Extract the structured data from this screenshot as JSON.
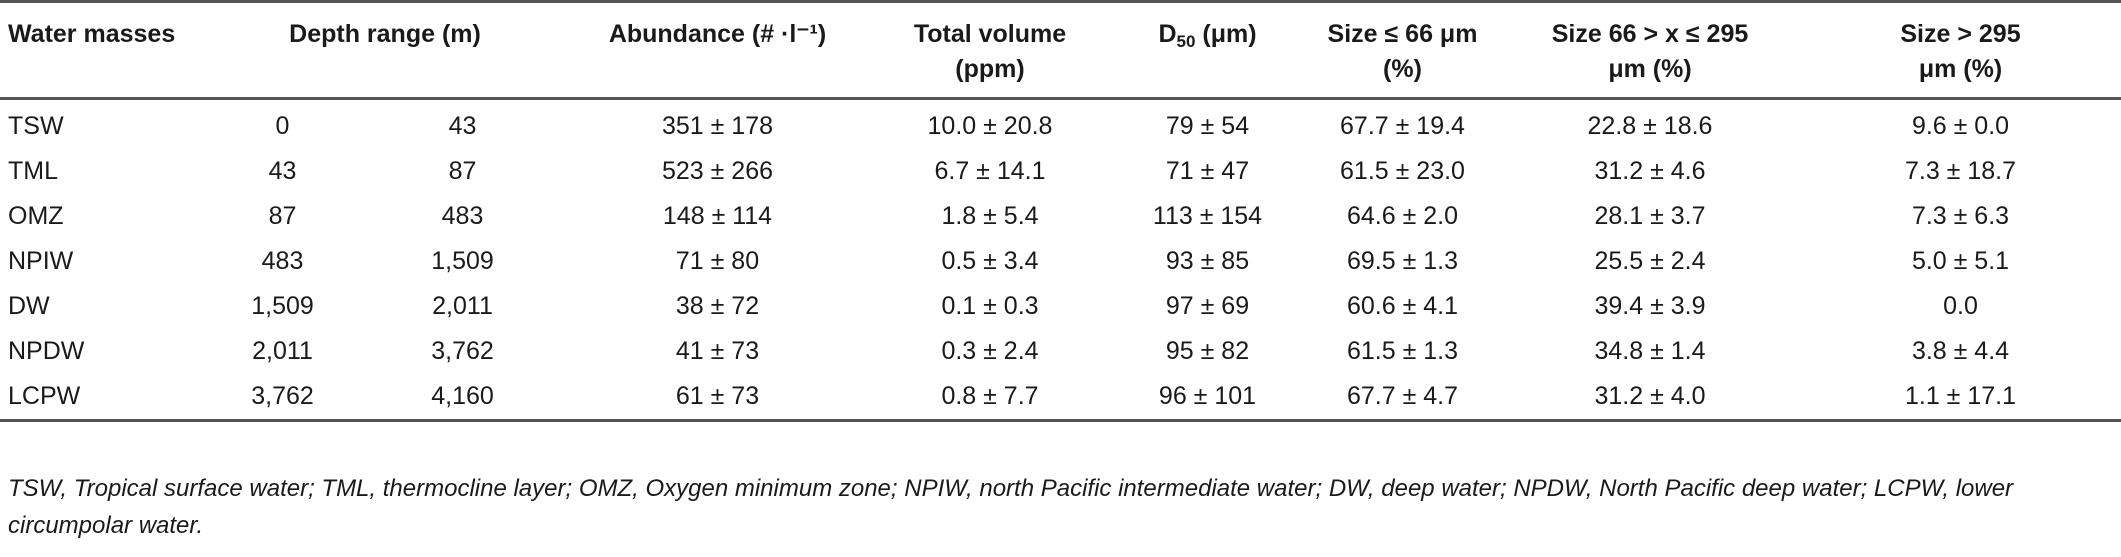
{
  "headers": {
    "water_masses": "Water masses",
    "depth_range": "Depth range (m)",
    "abundance": "Abundance (# ·l⁻¹)",
    "total_volume_line1": "Total volume",
    "total_volume_line2": "(ppm)",
    "d50_main": "D",
    "d50_sub": "50",
    "d50_unit": " (μm)",
    "size_small_line1": "Size ≤ 66 μm",
    "size_small_line2": "(%)",
    "size_mid_line1": "Size 66 > x ≤ 295",
    "size_mid_line2": "μm (%)",
    "size_large_line1": "Size > 295",
    "size_large_line2": "μm (%)"
  },
  "rows": [
    {
      "mass": "TSW",
      "depth_from": "0",
      "depth_to": "43",
      "abundance": "351 ± 178",
      "volume": "10.0 ± 20.8",
      "d50": "79 ± 54",
      "small": "67.7 ± 19.4",
      "mid": "22.8 ± 18.6",
      "large": "9.6 ± 0.0"
    },
    {
      "mass": "TML",
      "depth_from": "43",
      "depth_to": "87",
      "abundance": "523 ± 266",
      "volume": "6.7 ± 14.1",
      "d50": "71 ± 47",
      "small": "61.5 ± 23.0",
      "mid": "31.2 ± 4.6",
      "large": "7.3 ± 18.7"
    },
    {
      "mass": "OMZ",
      "depth_from": "87",
      "depth_to": "483",
      "abundance": "148 ± 114",
      "volume": "1.8 ± 5.4",
      "d50": "113 ± 154",
      "small": "64.6 ± 2.0",
      "mid": "28.1 ± 3.7",
      "large": "7.3 ± 6.3"
    },
    {
      "mass": "NPIW",
      "depth_from": "483",
      "depth_to": "1,509",
      "abundance": "71 ± 80",
      "volume": "0.5 ± 3.4",
      "d50": "93 ± 85",
      "small": "69.5 ± 1.3",
      "mid": "25.5 ± 2.4",
      "large": "5.0 ± 5.1"
    },
    {
      "mass": "DW",
      "depth_from": "1,509",
      "depth_to": "2,011",
      "abundance": "38 ± 72",
      "volume": "0.1 ± 0.3",
      "d50": "97 ± 69",
      "small": "60.6 ± 4.1",
      "mid": "39.4 ± 3.9",
      "large": "0.0"
    },
    {
      "mass": "NPDW",
      "depth_from": "2,011",
      "depth_to": "3,762",
      "abundance": "41 ± 73",
      "volume": "0.3 ± 2.4",
      "d50": "95 ± 82",
      "small": "61.5 ± 1.3",
      "mid": "34.8 ± 1.4",
      "large": "3.8 ± 4.4"
    },
    {
      "mass": "LCPW",
      "depth_from": "3,762",
      "depth_to": "4,160",
      "abundance": "61 ± 73",
      "volume": "0.8 ± 7.7",
      "d50": "96 ± 101",
      "small": "67.7 ± 4.7",
      "mid": "31.2 ± 4.0",
      "large": "1.1 ± 17.1"
    }
  ],
  "footnote": "TSW, Tropical surface water; TML, thermocline layer; OMZ, Oxygen minimum zone; NPIW, north Pacific intermediate water; DW, deep water; NPDW, North Pacific deep water; LCPW, lower circumpolar water."
}
